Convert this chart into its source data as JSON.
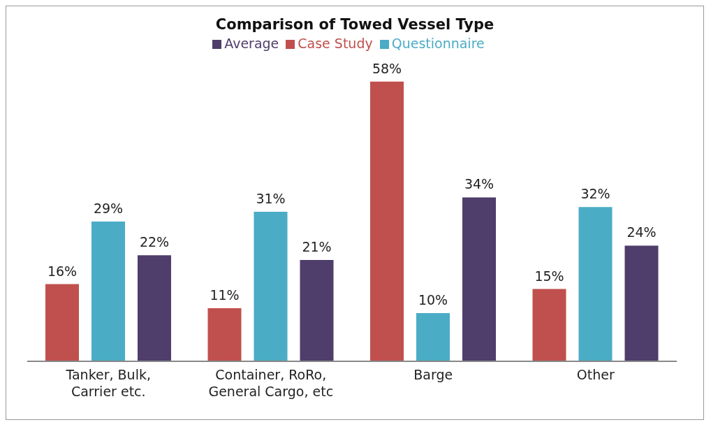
{
  "chart_data": {
    "type": "bar",
    "title": "Comparison of Towed Vessel Type",
    "categories": [
      "Tanker, Bulk, Carrier etc.",
      "Container, RoRo, General Cargo, etc",
      "Barge",
      "Other"
    ],
    "series": [
      {
        "name": "Case Study",
        "color": "#c0504d",
        "values": [
          16,
          11,
          58,
          15
        ],
        "value_labels": [
          "16%",
          "11%",
          "58%",
          "15%"
        ]
      },
      {
        "name": "Questionnaire",
        "color": "#4bacc6",
        "values": [
          29,
          31,
          10,
          32
        ],
        "value_labels": [
          "29%",
          "31%",
          "10%",
          "32%"
        ]
      },
      {
        "name": "Average",
        "color": "#4f3d6b",
        "values": [
          22,
          21,
          34,
          24
        ],
        "value_labels": [
          "22%",
          "21%",
          "34%",
          "24%"
        ]
      }
    ],
    "legend": "top",
    "grid": false
  }
}
